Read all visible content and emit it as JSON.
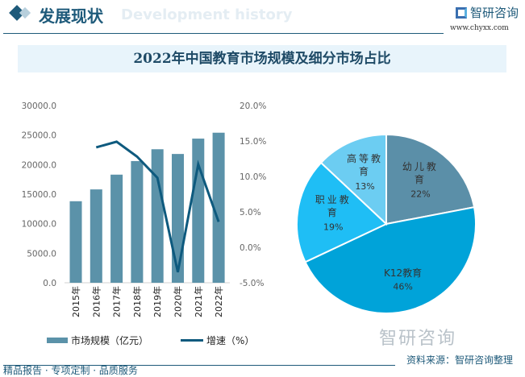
{
  "header": {
    "title": "发展现状",
    "ghost": "Development history",
    "logo": "智研咨询",
    "url": "www.chyxx.com"
  },
  "title": "2022年中国教育市场规模及细分市场占比",
  "legend": {
    "bar": "市场规模（亿元）",
    "line": "增速（%）"
  },
  "footer": {
    "source": "资料来源：智研咨询整理",
    "slogan": "精品报告 · 专项定制 · 品质服务",
    "watermark": "智研咨询"
  },
  "colors": {
    "bar": "#5b92a9",
    "line": "#0e5a7e",
    "accent": "#1e5a7a"
  },
  "chart_data": [
    {
      "type": "bar+line",
      "categories": [
        "2015年",
        "2016年",
        "2017年",
        "2018年",
        "2019年",
        "2020年",
        "2021年",
        "2022年"
      ],
      "series": [
        {
          "name": "市场规模（亿元）",
          "type": "bar",
          "axis": "left",
          "values": [
            13800,
            15800,
            18300,
            20600,
            22600,
            21800,
            24400,
            25400
          ]
        },
        {
          "name": "增速（%）",
          "type": "line",
          "axis": "right",
          "values": [
            null,
            14.1,
            14.9,
            12.8,
            9.8,
            -3.5,
            11.7,
            3.6
          ]
        }
      ],
      "yleft": {
        "ylim": [
          0,
          30000
        ],
        "ticks": [
          "0.0",
          "5000.0",
          "10000.0",
          "15000.0",
          "20000.0",
          "25000.0",
          "30000.0"
        ]
      },
      "yright": {
        "ylim": [
          -5,
          20
        ],
        "ticks": [
          "-5.0%",
          "0.0%",
          "5.0%",
          "10.0%",
          "15.0%",
          "20.0%"
        ]
      },
      "grid": false,
      "legend": "bottom"
    },
    {
      "type": "pie",
      "slices": [
        {
          "label": "幼儿教育",
          "value": 22,
          "text": "22%",
          "color": "#5b8fa8"
        },
        {
          "label": "K12教育",
          "value": 46,
          "text": "46%",
          "color": "#00a3d9"
        },
        {
          "label": "职业教育",
          "value": 19,
          "text": "19%",
          "color": "#1fbef5"
        },
        {
          "label": "高等教育",
          "value": 13,
          "text": "13%",
          "color": "#6ccdf2"
        }
      ]
    }
  ]
}
